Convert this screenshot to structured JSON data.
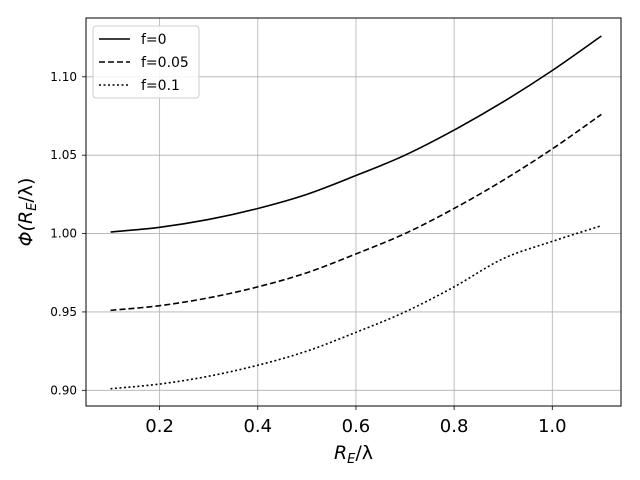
{
  "chart_data": {
    "type": "line",
    "title": "",
    "xlabel": "R_E/λ",
    "ylabel": "Φ(R_E/λ)",
    "xlim": [
      0.05,
      1.14
    ],
    "ylim": [
      0.89,
      1.1375
    ],
    "x_ticks": [
      0.2,
      0.4,
      0.6,
      0.8,
      1.0
    ],
    "x_tick_labels": [
      "0.2",
      "0.4",
      "0.6",
      "0.8",
      "1.0"
    ],
    "y_ticks": [
      0.9,
      0.95,
      1.0,
      1.05,
      1.1
    ],
    "y_tick_labels": [
      "0.90",
      "0.95",
      "1.00",
      "1.05",
      "1.10"
    ],
    "grid": true,
    "legend_position": "top-left",
    "x": [
      0.1,
      0.2,
      0.3,
      0.4,
      0.5,
      0.6,
      0.7,
      0.8,
      0.9,
      1.0,
      1.1
    ],
    "series": [
      {
        "name": "f=0",
        "style": "solid",
        "color": "#000000",
        "values": [
          1.001,
          1.004,
          1.009,
          1.016,
          1.025,
          1.037,
          1.05,
          1.066,
          1.084,
          1.104,
          1.126
        ]
      },
      {
        "name": "f=0.05",
        "style": "dashed",
        "color": "#000000",
        "values": [
          0.951,
          0.954,
          0.959,
          0.966,
          0.975,
          0.987,
          1.0,
          1.016,
          1.034,
          1.054,
          1.076
        ]
      },
      {
        "name": "f=0.1",
        "style": "dotted",
        "color": "#000000",
        "values": [
          0.901,
          0.904,
          0.909,
          0.916,
          0.925,
          0.937,
          0.95,
          0.966,
          0.984,
          0.995,
          1.005
        ]
      }
    ]
  }
}
